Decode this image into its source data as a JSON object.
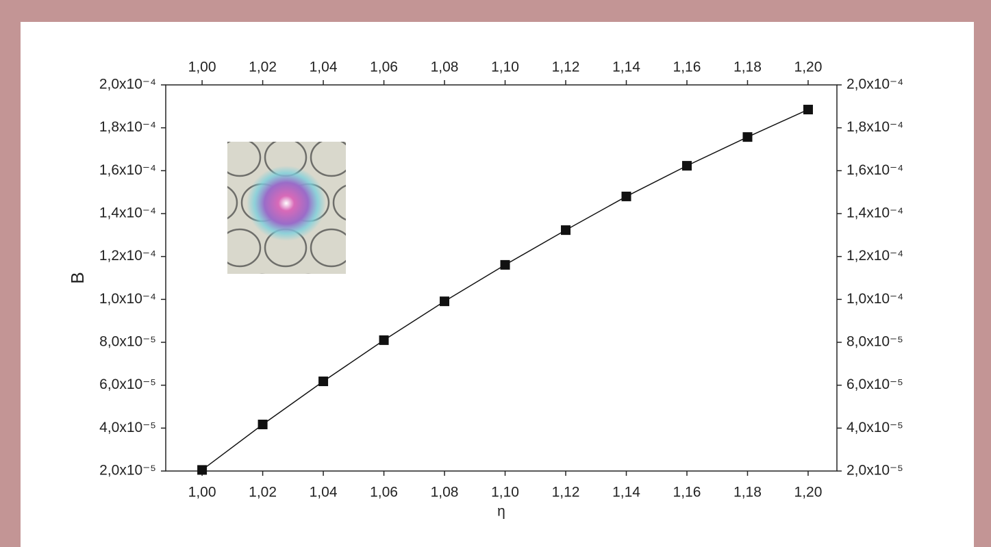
{
  "chart_data": {
    "type": "line",
    "x_label": "η",
    "y_label": "B",
    "x": [
      1.0,
      1.02,
      1.04,
      1.06,
      1.08,
      1.1,
      1.12,
      1.14,
      1.16,
      1.18,
      1.2
    ],
    "series": [
      {
        "color": "#111111",
        "values": [
          2.05e-05,
          4.17e-05,
          6.18e-05,
          8.1e-05,
          9.91e-05,
          0.0001161,
          0.0001323,
          0.000148,
          0.0001623,
          0.0001757,
          0.0001885
        ]
      }
    ],
    "xlim": [
      0.988,
      1.2095
    ],
    "ylim": [
      2e-05,
      0.0002
    ],
    "xticks": [
      {
        "value": 1.0,
        "label": "1,00"
      },
      {
        "value": 1.02,
        "label": "1,02"
      },
      {
        "value": 1.04,
        "label": "1,04"
      },
      {
        "value": 1.06,
        "label": "1,06"
      },
      {
        "value": 1.08,
        "label": "1,08"
      },
      {
        "value": 1.1,
        "label": "1,10"
      },
      {
        "value": 1.12,
        "label": "1,12"
      },
      {
        "value": 1.14,
        "label": "1,14"
      },
      {
        "value": 1.16,
        "label": "1,16"
      },
      {
        "value": 1.18,
        "label": "1,18"
      },
      {
        "value": 1.2,
        "label": "1,20"
      }
    ],
    "yticks": [
      {
        "value": 2e-05,
        "label": "2,0x10⁻⁵"
      },
      {
        "value": 4e-05,
        "label": "4,0x10⁻⁵"
      },
      {
        "value": 6e-05,
        "label": "6,0x10⁻⁵"
      },
      {
        "value": 8e-05,
        "label": "8,0x10⁻⁵"
      },
      {
        "value": 0.0001,
        "label": "1,0x10⁻⁴"
      },
      {
        "value": 0.00012,
        "label": "1,2x10⁻⁴"
      },
      {
        "value": 0.00014,
        "label": "1,4x10⁻⁴"
      },
      {
        "value": 0.00016,
        "label": "1,6x10⁻⁴"
      },
      {
        "value": 0.00018,
        "label": "1,8x10⁻⁴"
      },
      {
        "value": 0.0002,
        "label": "2,0x10⁻⁴"
      }
    ],
    "grid": false
  }
}
